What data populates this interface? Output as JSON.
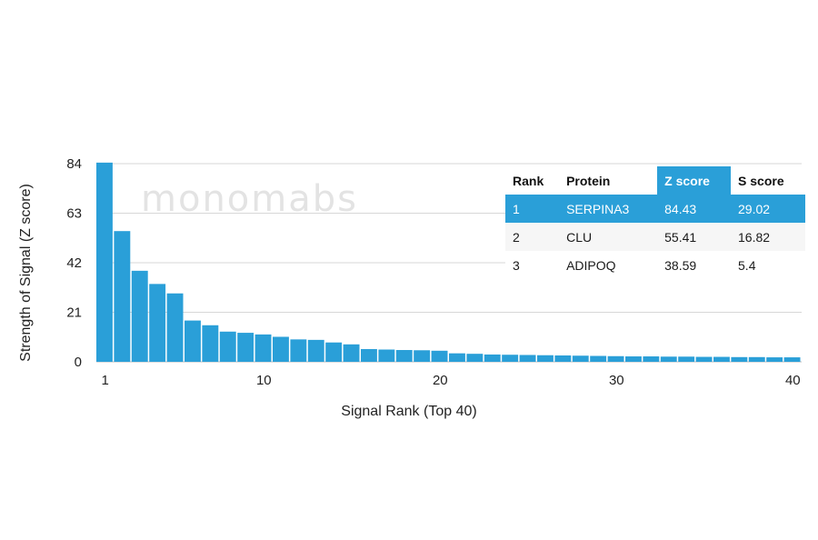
{
  "chart_data": {
    "type": "bar",
    "xlabel": "Signal Rank (Top 40)",
    "ylabel": "Strength of Signal (Z score)",
    "ylim": [
      0,
      84
    ],
    "yticks": [
      0,
      21,
      42,
      63,
      84
    ],
    "xticks": [
      1,
      10,
      20,
      30,
      40
    ],
    "grid": true,
    "bar_color": "#2a9fd8",
    "x": [
      1,
      2,
      3,
      4,
      5,
      6,
      7,
      8,
      9,
      10,
      11,
      12,
      13,
      14,
      15,
      16,
      17,
      18,
      19,
      20,
      21,
      22,
      23,
      24,
      25,
      26,
      27,
      28,
      29,
      30,
      31,
      32,
      33,
      34,
      35,
      36,
      37,
      38,
      39,
      40
    ],
    "values": [
      84.43,
      55.41,
      38.59,
      33.0,
      29.0,
      17.5,
      15.5,
      12.8,
      12.3,
      11.6,
      10.6,
      9.5,
      9.3,
      8.2,
      7.4,
      5.4,
      5.2,
      5.0,
      4.9,
      4.7,
      3.6,
      3.4,
      3.1,
      3.0,
      2.9,
      2.8,
      2.7,
      2.6,
      2.5,
      2.4,
      2.3,
      2.3,
      2.2,
      2.2,
      2.1,
      2.1,
      2.0,
      2.0,
      1.9,
      1.9
    ]
  },
  "watermark": "monomabs",
  "table": {
    "headers": [
      "Rank",
      "Protein",
      "Z score",
      "S score"
    ],
    "rows": [
      [
        "1",
        "SERPINA3",
        "84.43",
        "29.02"
      ],
      [
        "2",
        "CLU",
        "55.41",
        "16.82"
      ],
      [
        "3",
        "ADIPOQ",
        "38.59",
        "5.4"
      ]
    ]
  }
}
